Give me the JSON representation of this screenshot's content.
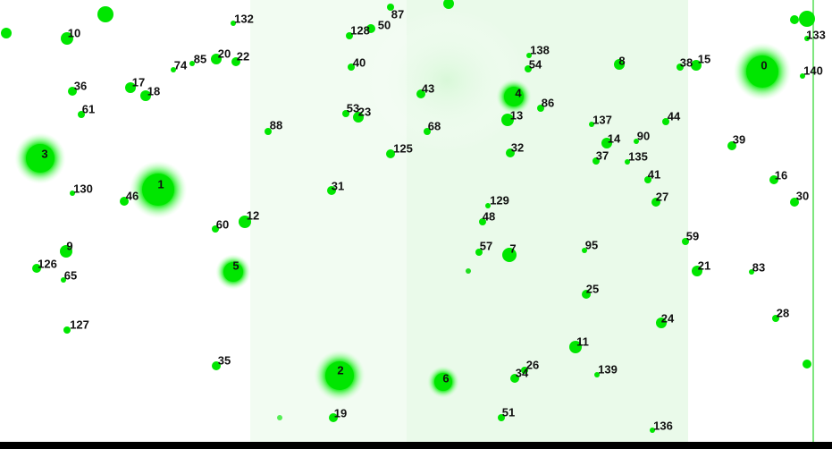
{
  "labels": [
    "0",
    "1",
    "2",
    "3",
    "4",
    "5",
    "6",
    "7",
    "8",
    "9",
    "10",
    "11",
    "12",
    "13",
    "14",
    "15",
    "16",
    "17",
    "18",
    "19",
    "20",
    "21",
    "22",
    "23",
    "24",
    "25",
    "26",
    "27",
    "28",
    "30",
    "31",
    "32",
    "34",
    "35",
    "36",
    "37",
    "38",
    "39",
    "40",
    "41",
    "43",
    "44",
    "46",
    "48",
    "50",
    "51",
    "53",
    "54",
    "57",
    "59",
    "60",
    "61",
    "65",
    "68",
    "74",
    "83",
    "85",
    "86",
    "87",
    "88",
    "90",
    "95",
    "125",
    "126",
    "127",
    "128",
    "129",
    "130",
    "132",
    "133",
    "135",
    "136",
    "137",
    "138",
    "139",
    "140"
  ]
}
